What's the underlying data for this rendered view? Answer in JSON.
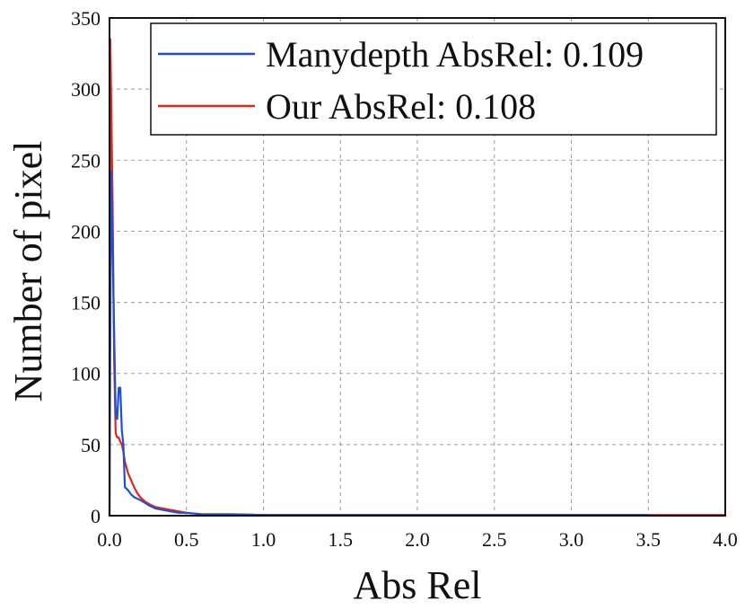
{
  "chart_data": {
    "type": "line",
    "title": "",
    "xlabel": "Abs Rel",
    "ylabel": "Number of pixel",
    "xlim": [
      0.0,
      4.0
    ],
    "ylim": [
      0,
      350
    ],
    "grid": true,
    "legend_position": "top-right",
    "x_ticks": [
      "0.0",
      "0.5",
      "1.0",
      "1.5",
      "2.0",
      "2.5",
      "3.0",
      "3.5",
      "4.0"
    ],
    "y_ticks": [
      "0",
      "50",
      "100",
      "150",
      "200",
      "250",
      "300",
      "350"
    ],
    "series": [
      {
        "name": "Manydepth AbsRel: 0.109",
        "color": "#1f4fd6",
        "x": [
          0.0,
          0.01,
          0.015,
          0.02,
          0.03,
          0.04,
          0.05,
          0.06,
          0.07,
          0.08,
          0.09,
          0.1,
          0.12,
          0.14,
          0.16,
          0.18,
          0.2,
          0.23,
          0.26,
          0.3,
          0.35,
          0.4,
          0.45,
          0.5,
          0.6,
          0.8,
          1.0,
          1.5,
          2.0,
          2.5,
          3.0,
          3.5
        ],
        "y": [
          0,
          242,
          215,
          190,
          130,
          72,
          68,
          90,
          90,
          60,
          50,
          20,
          18,
          15,
          13,
          12,
          11,
          9,
          7,
          5,
          4,
          3,
          2,
          2,
          1,
          1,
          0.5,
          0.5,
          0.5,
          0.5,
          0.5,
          0.5
        ]
      },
      {
        "name": "Our AbsRel: 0.108",
        "color": "#e8241a",
        "x": [
          0.0,
          0.005,
          0.01,
          0.02,
          0.03,
          0.04,
          0.05,
          0.06,
          0.07,
          0.08,
          0.09,
          0.1,
          0.12,
          0.14,
          0.16,
          0.18,
          0.2,
          0.23,
          0.26,
          0.3,
          0.35,
          0.4,
          0.45,
          0.5,
          0.6,
          0.8,
          1.0,
          1.5,
          2.0,
          2.5,
          3.0,
          3.5,
          4.0
        ],
        "y": [
          0,
          335,
          300,
          220,
          110,
          58,
          55,
          55,
          52,
          50,
          45,
          38,
          30,
          25,
          20,
          16,
          13,
          10,
          8,
          6,
          5,
          4,
          3,
          2,
          1,
          1,
          0.5,
          0.5,
          0.5,
          0.5,
          0.5,
          0.5,
          0.5
        ]
      }
    ]
  }
}
